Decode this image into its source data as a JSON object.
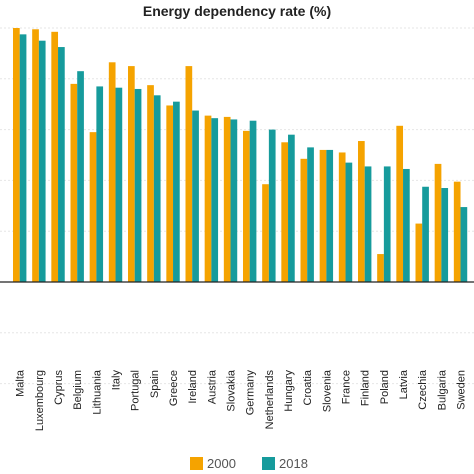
{
  "chart_data": {
    "type": "bar",
    "title": "Energy dependency rate (%)",
    "xlabel": "",
    "ylabel": "",
    "ylim": [
      -50,
      120
    ],
    "grid": true,
    "legend_position": "bottom",
    "categories": [
      "Malta",
      "Luxembourg",
      "Cyprus",
      "Belgium",
      "Lithuania",
      "Italy",
      "Portugal",
      "Spain",
      "Greece",
      "Ireland",
      "Austria",
      "Slovakia",
      "Germany",
      "Netherlands",
      "Hungary",
      "Croatia",
      "Slovenia",
      "France",
      "Finland",
      "Poland",
      "Latvia",
      "Czechia",
      "Bulgaria",
      "Sweden"
    ],
    "series": [
      {
        "name": "2000",
        "color": "#f5a300",
        "values": [
          100.0,
          99.5,
          98.5,
          78.0,
          59.0,
          86.5,
          85.0,
          77.5,
          69.5,
          85.0,
          65.5,
          65.0,
          59.5,
          38.5,
          55.0,
          48.5,
          52.0,
          51.0,
          55.5,
          11.0,
          61.5,
          23.0,
          46.5,
          39.5
        ]
      },
      {
        "name": "2018",
        "color": "#169b9c",
        "values": [
          97.5,
          95.0,
          92.5,
          83.0,
          77.0,
          76.5,
          76.0,
          73.5,
          71.0,
          67.5,
          64.5,
          64.0,
          63.5,
          60.0,
          58.0,
          53.0,
          52.0,
          47.0,
          45.5,
          45.5,
          44.5,
          37.5,
          37.0,
          29.5
        ]
      }
    ]
  }
}
